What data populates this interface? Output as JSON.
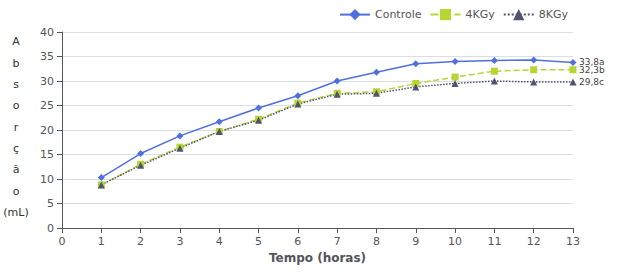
{
  "chart_data": {
    "type": "line",
    "xlabel": "Tempo (horas)",
    "ylabel": [
      "A",
      "b",
      "s",
      "o",
      "r",
      "ç",
      "ã",
      "o",
      "(mL)"
    ],
    "x": [
      1,
      2,
      3,
      4,
      5,
      6,
      7,
      8,
      9,
      10,
      11,
      12,
      13
    ],
    "series": [
      {
        "name": "Controle",
        "values": [
          10.3,
          15.2,
          18.8,
          21.7,
          24.5,
          27.0,
          30.0,
          31.8,
          33.5,
          34.0,
          34.2,
          34.3,
          33.8
        ],
        "marker": "diamond",
        "line_style": "solid"
      },
      {
        "name": "4KGy",
        "values": [
          8.8,
          13.0,
          16.5,
          19.7,
          22.2,
          25.5,
          27.5,
          27.8,
          29.5,
          30.8,
          32.0,
          32.3,
          32.3
        ],
        "marker": "square",
        "line_style": "dashed"
      },
      {
        "name": "8KGy",
        "values": [
          8.8,
          12.8,
          16.3,
          19.7,
          22.0,
          25.3,
          27.3,
          27.5,
          28.8,
          29.5,
          30.0,
          29.8,
          29.8
        ],
        "marker": "triangle",
        "line_style": "dotted"
      }
    ],
    "annotations": [
      {
        "text": "33,8a",
        "x": 13,
        "y": 33.8
      },
      {
        "text": "32,3b",
        "x": 13,
        "y": 32.3
      },
      {
        "text": "29,8c",
        "x": 13,
        "y": 29.8
      }
    ],
    "xlim": [
      0,
      13
    ],
    "xticks": [
      0,
      1,
      2,
      3,
      4,
      5,
      6,
      7,
      8,
      9,
      10,
      11,
      12,
      13
    ],
    "ylim": [
      0,
      40
    ],
    "yticks": [
      0,
      5,
      10,
      15,
      20,
      25,
      30,
      35,
      40
    ],
    "grid": true,
    "legend": "upper right"
  }
}
